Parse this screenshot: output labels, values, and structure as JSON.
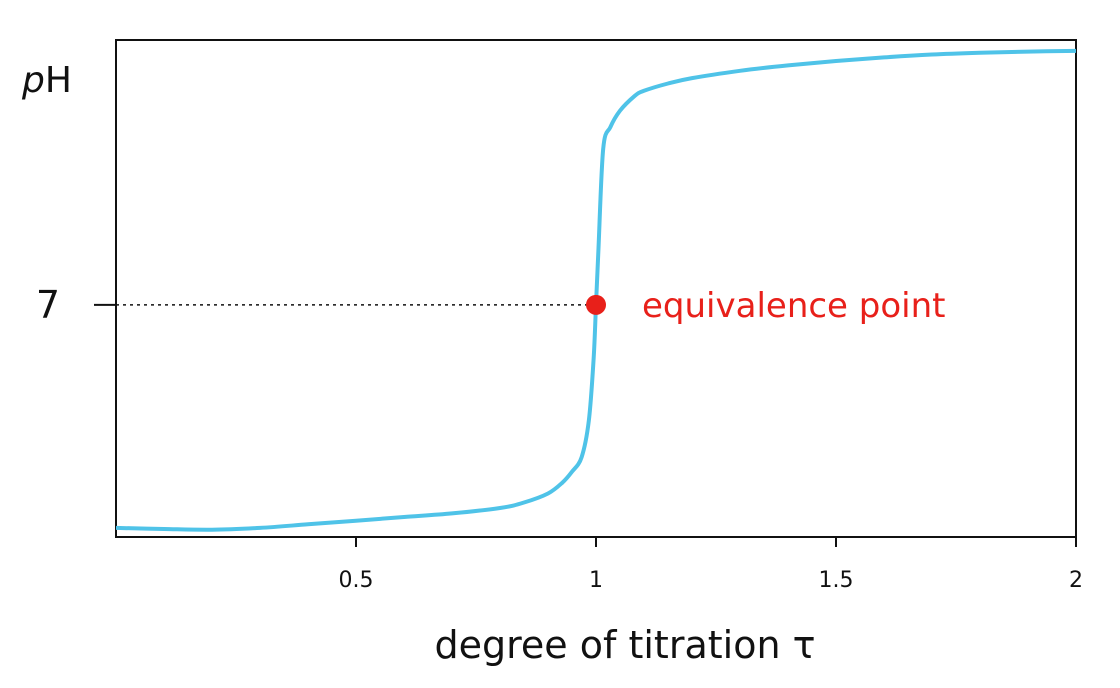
{
  "chart_data": {
    "type": "line",
    "title": "",
    "xlabel": "degree of titration τ",
    "ylabel": "pH",
    "ylabel_italic": "p",
    "ylabel_rest": "H",
    "xlim": [
      0,
      2
    ],
    "ylim": [
      0.6,
      14.3
    ],
    "grid": false,
    "x_ticks": [
      {
        "value": 0.5,
        "label": "0.5"
      },
      {
        "value": 1,
        "label": "1"
      },
      {
        "value": 1.5,
        "label": "1.5"
      },
      {
        "value": 2,
        "label": "2"
      }
    ],
    "y_ticks": [
      {
        "value": 7,
        "label": "7"
      }
    ],
    "series": [
      {
        "color": "#4fc3e8",
        "x": [
          0,
          0.1,
          0.2,
          0.3,
          0.4,
          0.5,
          0.6,
          0.7,
          0.8,
          0.85,
          0.9,
          0.93,
          0.95,
          0.97,
          0.985,
          0.995,
          1.0,
          1.005,
          1.015,
          1.03,
          1.05,
          1.08,
          1.1,
          1.15,
          1.2,
          1.3,
          1.4,
          1.5,
          1.6,
          1.7,
          1.8,
          1.9,
          2.0
        ],
        "y": [
          0.85,
          0.82,
          0.8,
          0.85,
          0.95,
          1.05,
          1.15,
          1.25,
          1.4,
          1.55,
          1.8,
          2.1,
          2.4,
          2.8,
          3.8,
          5.5,
          7.0,
          8.5,
          11.3,
          11.9,
          12.35,
          12.75,
          12.9,
          13.1,
          13.25,
          13.45,
          13.6,
          13.72,
          13.82,
          13.9,
          13.95,
          13.98,
          14.0
        ]
      }
    ],
    "annotations": [
      {
        "type": "point",
        "x": 1,
        "y": 7,
        "text": "equivalence point",
        "color": "#e8201a"
      },
      {
        "type": "hline-dotted",
        "y": 7,
        "x_from": 0,
        "x_to": 1
      }
    ],
    "colors": {
      "curve": "#4fc3e8",
      "marker": "#e8201a",
      "axis": "#111111"
    }
  }
}
